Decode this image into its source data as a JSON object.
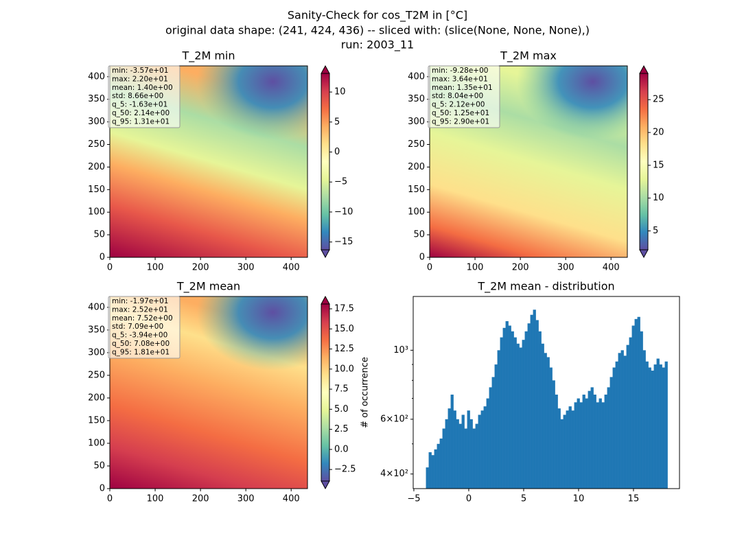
{
  "title_lines": [
    "Sanity-Check for cos_T2M in [°C]",
    "original data shape: (241, 424, 436) -- sliced with: (slice(None, None, None),)",
    "run: 2003_11"
  ],
  "chart_data": [
    {
      "type": "heatmap",
      "title": "T_2M min",
      "colormap": "Spectral_r",
      "xlim": [
        0,
        436
      ],
      "ylim": [
        0,
        424
      ],
      "xticks": [
        0,
        100,
        200,
        300,
        400
      ],
      "yticks": [
        0,
        50,
        100,
        150,
        200,
        250,
        300,
        350,
        400
      ],
      "stats": [
        "min: -3.57e+01",
        "max: 2.20e+01",
        "mean: 1.40e+00",
        "std: 8.66e+00",
        "q_5: -1.63e+01",
        "q_50: 2.14e+00",
        "q_95: 1.31e+01"
      ],
      "clim": [
        -16.3,
        13.1
      ],
      "cticks": [
        {
          "value": -15,
          "label": "−15"
        },
        {
          "value": -10,
          "label": "−10"
        },
        {
          "value": -5,
          "label": "−5"
        },
        0,
        5,
        10
      ]
    },
    {
      "type": "heatmap",
      "title": "T_2M max",
      "colormap": "Spectral_r",
      "xlim": [
        0,
        436
      ],
      "ylim": [
        0,
        424
      ],
      "xticks": [
        0,
        100,
        200,
        300,
        400
      ],
      "yticks": [
        0,
        50,
        100,
        150,
        200,
        250,
        300,
        350,
        400
      ],
      "stats": [
        "min: -9.28e+00",
        "max: 3.64e+01",
        "mean: 1.35e+01",
        "std: 8.04e+00",
        "q_5: 2.12e+00",
        "q_50: 1.25e+01",
        "q_95: 2.90e+01"
      ],
      "clim": [
        2.12,
        29.0
      ],
      "cticks": [
        5,
        10,
        15,
        20,
        25
      ]
    },
    {
      "type": "heatmap",
      "title": "T_2M mean",
      "colormap": "Spectral_r",
      "xlim": [
        0,
        436
      ],
      "ylim": [
        0,
        424
      ],
      "xticks": [
        0,
        100,
        200,
        300,
        400
      ],
      "yticks": [
        0,
        50,
        100,
        150,
        200,
        250,
        300,
        350,
        400
      ],
      "stats": [
        "min: -1.97e+01",
        "max: 2.52e+01",
        "mean: 7.52e+00",
        "std: 7.09e+00",
        "q_5: -3.94e+00",
        "q_50: 7.08e+00",
        "q_95: 1.81e+01"
      ],
      "clim": [
        -3.94,
        18.1
      ],
      "cticks": [
        {
          "value": -2.5,
          "label": "−2.5"
        },
        {
          "value": 0,
          "label": "0.0"
        },
        2.5,
        {
          "value": 5,
          "label": "5.0"
        },
        7.5,
        {
          "value": 10,
          "label": "10.0"
        },
        12.5,
        {
          "value": 15,
          "label": "15.0"
        },
        17.5
      ]
    },
    {
      "type": "histogram",
      "title": "T_2M mean - distribution",
      "ylabel": "# of occurrence",
      "color": "#1f77b4",
      "yscale": "log",
      "bins": [
        -3.9,
        -3.65,
        -3.4,
        -3.15,
        -2.9,
        -2.65,
        -2.4,
        -2.15,
        -1.9,
        -1.65,
        -1.4,
        -1.15,
        -0.9,
        -0.65,
        -0.4,
        -0.15,
        0.1,
        0.35,
        0.6,
        0.85,
        1.1,
        1.35,
        1.6,
        1.85,
        2.1,
        2.35,
        2.6,
        2.85,
        3.1,
        3.35,
        3.6,
        3.85,
        4.1,
        4.35,
        4.6,
        4.85,
        5.1,
        5.35,
        5.6,
        5.85,
        6.1,
        6.35,
        6.6,
        6.85,
        7.1,
        7.35,
        7.6,
        7.85,
        8.1,
        8.35,
        8.6,
        8.85,
        9.1,
        9.35,
        9.6,
        9.85,
        10.1,
        10.35,
        10.6,
        10.85,
        11.1,
        11.35,
        11.6,
        11.85,
        12.1,
        12.35,
        12.6,
        12.85,
        13.1,
        13.35,
        13.6,
        13.85,
        14.1,
        14.35,
        14.6,
        14.85,
        15.1,
        15.35,
        15.6,
        15.85,
        16.1,
        16.35,
        16.6,
        16.85,
        17.1,
        17.35,
        17.6,
        17.85,
        18.1
      ],
      "values": [
        420,
        470,
        460,
        480,
        500,
        520,
        560,
        600,
        650,
        720,
        640,
        600,
        580,
        620,
        560,
        640,
        600,
        560,
        580,
        620,
        640,
        660,
        700,
        760,
        820,
        900,
        1000,
        1100,
        1180,
        1240,
        1200,
        1150,
        1100,
        1050,
        1020,
        1080,
        1150,
        1220,
        1300,
        1350,
        1250,
        1150,
        1050,
        980,
        950,
        880,
        800,
        720,
        650,
        600,
        620,
        640,
        660,
        640,
        680,
        700,
        680,
        720,
        700,
        740,
        760,
        720,
        680,
        700,
        680,
        720,
        760,
        820,
        880,
        920,
        980,
        1000,
        960,
        1040,
        1100,
        1200,
        1260,
        1280,
        1150,
        1000,
        920,
        880,
        860,
        900,
        940,
        900,
        880,
        920
      ],
      "xlim": [
        -5.06,
        19.19
      ],
      "ylim": [
        359,
        1489
      ],
      "xticks": [
        {
          "value": -5,
          "label": "−5"
        },
        0,
        5,
        10,
        15
      ],
      "yticks": [
        {
          "value": 400,
          "label": "4×10²"
        },
        {
          "value": 600,
          "label": "6×10²"
        },
        {
          "value": 1000,
          "label": "10³"
        }
      ],
      "yminor": [
        500,
        700,
        800,
        900
      ]
    }
  ]
}
